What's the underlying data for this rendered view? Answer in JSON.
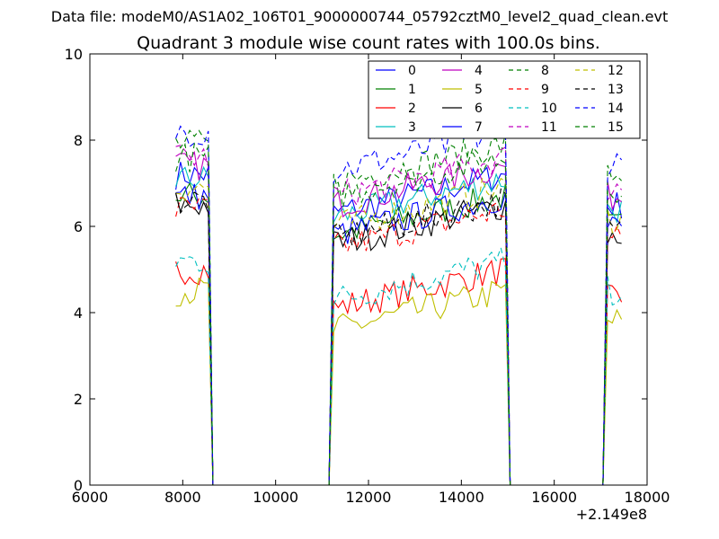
{
  "suptitle": "Data file: modeM0/AS1A02_106T01_9000000744_05792cztM0_level2_quad_clean.evt",
  "chart_data": {
    "type": "line",
    "title": "Quadrant 3 module wise count rates with 100.0s bins.",
    "xlabel": "",
    "ylabel": "",
    "xlim": [
      6000,
      18000
    ],
    "ylim": [
      0,
      10
    ],
    "x_offset_label": "+2.149e8",
    "xticks": [
      6000,
      8000,
      10000,
      12000,
      14000,
      16000,
      18000
    ],
    "xtick_labels": [
      "6000",
      "8000",
      "10000",
      "12000",
      "14000",
      "16000",
      "18000"
    ],
    "yticks": [
      0,
      2,
      4,
      6,
      8,
      10
    ],
    "ytick_labels": [
      "0",
      "2",
      "4",
      "6",
      "8",
      "10"
    ],
    "legend_position": "top-right",
    "legend_columns": 4,
    "segments": [
      [
        7850,
        8550
      ],
      [
        11250,
        14950
      ],
      [
        17150,
        17500
      ]
    ],
    "series": [
      {
        "name": "0",
        "color": "#0000ff",
        "dash": "solid",
        "level": 6.9
      },
      {
        "name": "1",
        "color": "#008000",
        "dash": "solid",
        "level": 6.4
      },
      {
        "name": "2",
        "color": "#ff0000",
        "dash": "solid",
        "level": 4.7
      },
      {
        "name": "3",
        "color": "#00bfbf",
        "dash": "solid",
        "level": 6.8
      },
      {
        "name": "4",
        "color": "#bf00bf",
        "dash": "solid",
        "level": 7.1
      },
      {
        "name": "5",
        "color": "#bfbf00",
        "dash": "solid",
        "level": 4.2
      },
      {
        "name": "6",
        "color": "#000000",
        "dash": "solid",
        "level": 6.2
      },
      {
        "name": "7",
        "color": "#0000ff",
        "dash": "solid",
        "level": 6.4
      },
      {
        "name": "8",
        "color": "#008000",
        "dash": "dashed",
        "level": 7.6
      },
      {
        "name": "9",
        "color": "#ff0000",
        "dash": "dashed",
        "level": 6.1
      },
      {
        "name": "10",
        "color": "#00bfbf",
        "dash": "dashed",
        "level": 4.9
      },
      {
        "name": "11",
        "color": "#bf00bf",
        "dash": "dashed",
        "level": 7.3
      },
      {
        "name": "12",
        "color": "#bfbf00",
        "dash": "dashed",
        "level": 6.6
      },
      {
        "name": "13",
        "color": "#000000",
        "dash": "dashed",
        "level": 6.3
      },
      {
        "name": "14",
        "color": "#0000ff",
        "dash": "dashed",
        "level": 7.9
      },
      {
        "name": "15",
        "color": "#008000",
        "dash": "dashed",
        "level": 7.3
      }
    ]
  }
}
